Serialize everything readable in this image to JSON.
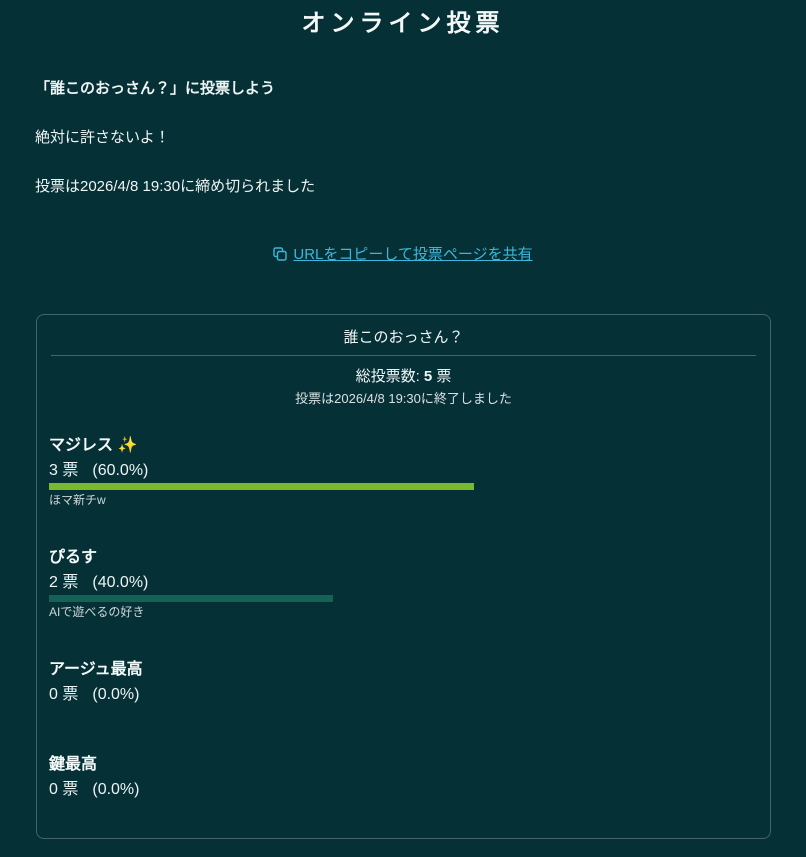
{
  "page": {
    "title": "オンライン投票"
  },
  "intro": {
    "line1": "「誰このおっさん？」に投票しよう",
    "line2": "絶対に許さないよ！",
    "line3": "投票は2026/4/8 19:30に締め切られました"
  },
  "share": {
    "label": "URLをコピーして投票ページを共有",
    "icon": "copy-icon",
    "link_color": "#3cb6d9"
  },
  "poll": {
    "title": "誰このおっさん？",
    "total_label": "総投票数:",
    "total_votes": "5",
    "total_unit": "票",
    "closed_note": "投票は2026/4/8 19:30に終了しました",
    "options": [
      {
        "label": "マジレス ✨",
        "votes": "3 票",
        "percent": "(60.0%)",
        "percent_value": 60.0,
        "bar_color": "#7ab82d",
        "note": "ほマ新チw"
      },
      {
        "label": "ぴるす",
        "votes": "2 票",
        "percent": "(40.0%)",
        "percent_value": 40.0,
        "bar_color": "#146158",
        "note": "AIで遊べるの好き"
      },
      {
        "label": "アージュ最高",
        "votes": "0 票",
        "percent": "(0.0%)",
        "percent_value": 0.0,
        "bar_color": "#146158",
        "note": ""
      },
      {
        "label": "鍵最高",
        "votes": "0 票",
        "percent": "(0.0%)",
        "percent_value": 0.0,
        "bar_color": "#146158",
        "note": ""
      }
    ]
  },
  "colors": {
    "background": "#053036",
    "card_border": "#43646b",
    "winner_bar": "#7ab82d",
    "other_bar": "#146158",
    "link": "#3cb6d9"
  },
  "chart_data": {
    "type": "bar",
    "title": "誰このおっさん？",
    "categories": [
      "マジレス ✨",
      "ぴるす",
      "アージュ最高",
      "鍵最高"
    ],
    "values": [
      3,
      2,
      0,
      0
    ],
    "percentages": [
      60.0,
      40.0,
      0.0,
      0.0
    ],
    "total": 5,
    "unit": "票"
  }
}
